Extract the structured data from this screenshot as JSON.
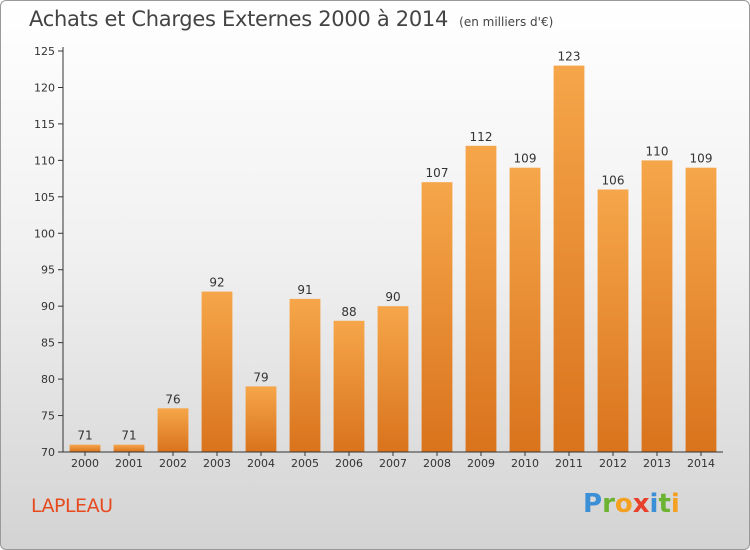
{
  "title": "Achats et Charges Externes 2000 à 2014",
  "subtitle": "(en milliers d'€)",
  "commune": "LAPLEAU",
  "logo": {
    "letters": [
      "P",
      "r",
      "o",
      "x",
      "i",
      "t",
      "i"
    ],
    "colors": [
      "#3a8fd6",
      "#6bb330",
      "#f4a020",
      "#e8402a",
      "#3a8fd6",
      "#6bb330",
      "#f4a020"
    ]
  },
  "colors": {
    "bar_top": "#f6a64a",
    "bar_bottom": "#d9731c",
    "label": "#333333",
    "axis": "#333333"
  },
  "chart_data": {
    "type": "bar",
    "title": "Achats et Charges Externes 2000 à 2014",
    "subtitle": "(en milliers d'€)",
    "xlabel": "",
    "ylabel": "",
    "categories": [
      "2000",
      "2001",
      "2002",
      "2003",
      "2004",
      "2005",
      "2006",
      "2007",
      "2008",
      "2009",
      "2010",
      "2011",
      "2012",
      "2013",
      "2014"
    ],
    "values": [
      71,
      71,
      76,
      92,
      79,
      91,
      88,
      90,
      107,
      112,
      109,
      123,
      106,
      110,
      109
    ],
    "ylim": [
      70,
      125
    ],
    "yticks": [
      70,
      75,
      80,
      85,
      90,
      95,
      100,
      105,
      110,
      115,
      120,
      125
    ],
    "data_labels": true,
    "grid": false,
    "legend": "none"
  }
}
